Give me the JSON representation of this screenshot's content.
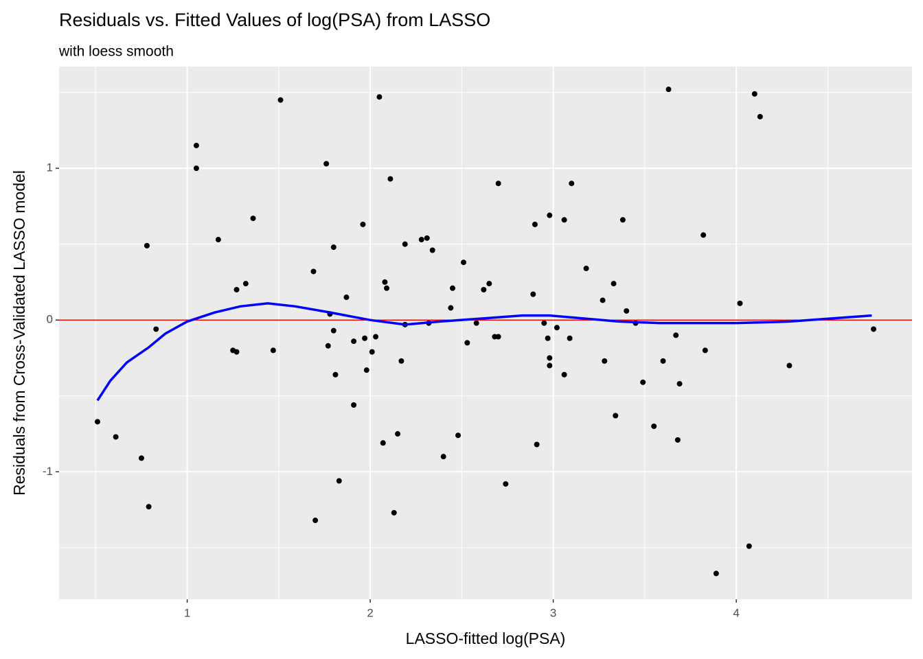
{
  "chart_data": {
    "type": "scatter",
    "title": "Residuals vs. Fitted Values of log(PSA) from LASSO",
    "subtitle": "with loess smooth",
    "x_label": "LASSO-fitted log(PSA)",
    "y_label": "Residuals from Cross-Validated LASSO model",
    "xlim": [
      0.3,
      4.96
    ],
    "ylim": [
      -1.84,
      1.67
    ],
    "xticks": [
      1,
      2,
      3,
      4
    ],
    "yticks": [
      -1,
      0,
      1
    ],
    "x_minor_ticks": [
      0.5,
      1.5,
      2.5,
      3.5,
      4.5
    ],
    "y_minor_ticks": [
      -1.5,
      -0.5,
      0.5,
      1.5
    ],
    "grid": true,
    "color": "#000000",
    "x": [
      0.51,
      0.61,
      0.75,
      0.78,
      0.79,
      0.83,
      1.05,
      1.05,
      1.17,
      1.25,
      1.27,
      1.27,
      1.32,
      1.36,
      1.47,
      1.51,
      1.69,
      1.7,
      1.76,
      1.77,
      1.78,
      1.8,
      1.8,
      1.81,
      1.83,
      1.87,
      1.91,
      1.91,
      1.96,
      1.97,
      1.98,
      2.01,
      2.03,
      2.05,
      2.07,
      2.08,
      2.09,
      2.11,
      2.13,
      2.15,
      2.17,
      2.19,
      2.19,
      2.28,
      2.31,
      2.32,
      2.34,
      2.4,
      2.45,
      2.44,
      2.48,
      2.51,
      2.53,
      2.58,
      2.62,
      2.65,
      2.68,
      2.7,
      2.7,
      2.74,
      2.89,
      2.9,
      2.91,
      2.95,
      2.97,
      2.98,
      2.98,
      2.98,
      3.02,
      3.06,
      3.06,
      3.09,
      3.1,
      3.18,
      3.27,
      3.28,
      3.33,
      3.34,
      3.38,
      3.4,
      3.45,
      3.49,
      3.55,
      3.6,
      3.63,
      3.67,
      3.68,
      3.69,
      3.82,
      3.83,
      3.89,
      4.02,
      4.07,
      4.1,
      4.13,
      4.29,
      4.75
    ],
    "values": [
      -0.67,
      -0.77,
      -0.91,
      0.49,
      -1.23,
      -0.06,
      1.15,
      1.0,
      0.53,
      -0.2,
      -0.21,
      0.2,
      0.24,
      0.67,
      -0.2,
      1.45,
      0.32,
      -1.32,
      1.03,
      -0.17,
      0.04,
      0.48,
      -0.07,
      -0.36,
      -1.06,
      0.15,
      -0.56,
      -0.14,
      0.63,
      -0.12,
      -0.33,
      -0.21,
      -0.11,
      1.47,
      -0.81,
      0.25,
      0.21,
      0.93,
      -1.27,
      -0.75,
      -0.27,
      -0.03,
      0.5,
      0.53,
      0.54,
      -0.02,
      0.46,
      -0.9,
      0.21,
      0.08,
      -0.76,
      0.38,
      -0.15,
      -0.02,
      0.2,
      0.24,
      -0.11,
      -0.11,
      0.9,
      -1.08,
      0.17,
      0.63,
      -0.82,
      -0.02,
      -0.12,
      -0.25,
      -0.3,
      0.69,
      -0.05,
      0.66,
      -0.36,
      -0.12,
      0.9,
      0.34,
      0.13,
      -0.27,
      0.24,
      -0.63,
      0.66,
      0.06,
      -0.02,
      -0.41,
      -0.7,
      -0.27,
      1.52,
      -0.1,
      -0.79,
      -0.42,
      0.56,
      -0.2,
      -1.67,
      0.11,
      -1.49,
      1.49,
      1.34,
      -0.3,
      -0.06
    ],
    "smooth": {
      "color": "#0000ff",
      "x": [
        0.51,
        0.58,
        0.67,
        0.79,
        0.88,
        1.0,
        1.15,
        1.29,
        1.44,
        1.59,
        1.78,
        2.0,
        2.19,
        2.38,
        2.61,
        2.83,
        2.98,
        3.17,
        3.36,
        3.58,
        4.0,
        4.29,
        4.74
      ],
      "values": [
        -0.53,
        -0.4,
        -0.28,
        -0.18,
        -0.09,
        -0.01,
        0.05,
        0.09,
        0.11,
        0.09,
        0.05,
        0.0,
        -0.03,
        -0.01,
        0.01,
        0.03,
        0.03,
        0.01,
        -0.01,
        -0.02,
        -0.02,
        -0.01,
        0.03
      ]
    },
    "hline": {
      "value": 0,
      "color": "#ff0000"
    }
  }
}
